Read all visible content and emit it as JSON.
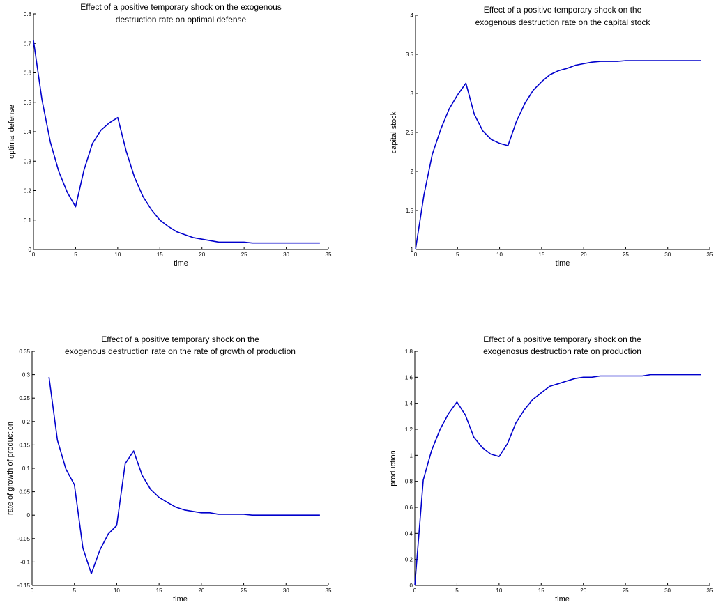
{
  "charts": [
    {
      "type": "line",
      "title_lines": [
        "Effect of a positive temporary shock on the exogenous",
        "destruction rate on optimal defense"
      ],
      "xlabel": "time",
      "ylabel": "optimal defense",
      "xlim": [
        0,
        35
      ],
      "ylim": [
        0,
        0.8
      ],
      "xticks": [
        0,
        5,
        10,
        15,
        20,
        25,
        30,
        35
      ],
      "yticks": [
        0,
        0.1,
        0.2,
        0.3,
        0.4,
        0.5,
        0.6,
        0.7,
        0.8
      ],
      "ytick_labels": [
        "0",
        "0.1",
        "0.2",
        "0.3",
        "0.4",
        "0.5",
        "0.6",
        "0.7",
        "0.8"
      ],
      "color": "#0000cc",
      "x": [
        0,
        1,
        2,
        3,
        4,
        5,
        6,
        7,
        8,
        9,
        10,
        11,
        12,
        13,
        14,
        15,
        16,
        17,
        18,
        19,
        20,
        21,
        22,
        23,
        24,
        25,
        26,
        27,
        28,
        29,
        30,
        31,
        32,
        33,
        34
      ],
      "y": [
        0.71,
        0.51,
        0.365,
        0.265,
        0.195,
        0.145,
        0.27,
        0.36,
        0.405,
        0.43,
        0.448,
        0.335,
        0.245,
        0.18,
        0.135,
        0.1,
        0.078,
        0.06,
        0.05,
        0.04,
        0.035,
        0.03,
        0.025,
        0.025,
        0.025,
        0.025,
        0.022,
        0.022,
        0.022,
        0.022,
        0.022,
        0.022,
        0.022,
        0.022,
        0.022
      ]
    },
    {
      "type": "line",
      "title_lines": [
        "Effect of a positive temporary shock on the",
        "exogenous destruction rate on the capital stock"
      ],
      "xlabel": "time",
      "ylabel": "capital stock",
      "xlim": [
        0,
        35
      ],
      "ylim": [
        1,
        4
      ],
      "xticks": [
        0,
        5,
        10,
        15,
        20,
        25,
        30,
        35
      ],
      "yticks": [
        1,
        1.5,
        2,
        2.5,
        3,
        3.5,
        4
      ],
      "ytick_labels": [
        "1",
        "1.5",
        "2",
        "2.5",
        "3",
        "3.5",
        "4"
      ],
      "color": "#0000cc",
      "x": [
        0,
        1,
        2,
        3,
        4,
        5,
        6,
        7,
        8,
        9,
        10,
        11,
        12,
        13,
        14,
        15,
        16,
        17,
        18,
        19,
        20,
        21,
        22,
        23,
        24,
        25,
        26,
        27,
        28,
        29,
        30,
        31,
        32,
        33,
        34
      ],
      "y": [
        1.0,
        1.7,
        2.22,
        2.54,
        2.8,
        2.98,
        3.13,
        2.73,
        2.52,
        2.41,
        2.36,
        2.33,
        2.64,
        2.87,
        3.04,
        3.15,
        3.24,
        3.29,
        3.32,
        3.36,
        3.38,
        3.4,
        3.41,
        3.41,
        3.41,
        3.42,
        3.42,
        3.42,
        3.42,
        3.42,
        3.42,
        3.42,
        3.42,
        3.42,
        3.42
      ]
    },
    {
      "type": "line",
      "title_lines": [
        "Effect of a positive  temporary shock on the",
        "exogenous destruction rate on the rate of growth of production"
      ],
      "xlabel": "time",
      "ylabel": "rate of growth of production",
      "xlim": [
        0,
        35
      ],
      "ylim": [
        -0.15,
        0.35
      ],
      "xticks": [
        0,
        5,
        10,
        15,
        20,
        25,
        30,
        35
      ],
      "yticks": [
        -0.15,
        -0.1,
        -0.05,
        0,
        0.05,
        0.1,
        0.15,
        0.2,
        0.25,
        0.3,
        0.35
      ],
      "ytick_labels": [
        "-0.15",
        "-0.1",
        "-0.05",
        "0",
        "0.05",
        "0.1",
        "0.15",
        "0.2",
        "0.25",
        "0.3",
        "0.35"
      ],
      "color": "#0000cc",
      "x": [
        2,
        3,
        4,
        5,
        6,
        7,
        8,
        9,
        10,
        11,
        12,
        13,
        14,
        15,
        16,
        17,
        18,
        19,
        20,
        21,
        22,
        23,
        24,
        25,
        26,
        27,
        28,
        29,
        30,
        31,
        32,
        33,
        34
      ],
      "y": [
        0.295,
        0.16,
        0.098,
        0.065,
        -0.07,
        -0.125,
        -0.075,
        -0.04,
        -0.022,
        0.11,
        0.137,
        0.085,
        0.055,
        0.038,
        0.027,
        0.017,
        0.011,
        0.008,
        0.005,
        0.005,
        0.002,
        0.002,
        0.002,
        0.002,
        0.0,
        0.0,
        0.0,
        0.0,
        0.0,
        0.0,
        0.0,
        0.0,
        0.0
      ]
    },
    {
      "type": "line",
      "title_lines": [
        "Effect of a positive  temporary shock on the",
        "exogenosus destruction rate on production"
      ],
      "xlabel": "time",
      "ylabel": "production",
      "xlim": [
        0,
        35
      ],
      "ylim": [
        0,
        1.8
      ],
      "xticks": [
        0,
        5,
        10,
        15,
        20,
        25,
        30,
        35
      ],
      "yticks": [
        0,
        0.2,
        0.4,
        0.6,
        0.8,
        1,
        1.2,
        1.4,
        1.6,
        1.8
      ],
      "ytick_labels": [
        "0",
        "0.2",
        "0.4",
        "0.6",
        "0.8",
        "1",
        "1.2",
        "1.4",
        "1.6",
        "1.8"
      ],
      "color": "#0000cc",
      "x": [
        0,
        1,
        2,
        3,
        4,
        5,
        6,
        7,
        8,
        9,
        10,
        11,
        12,
        13,
        14,
        15,
        16,
        17,
        18,
        19,
        20,
        21,
        22,
        23,
        24,
        25,
        26,
        27,
        28,
        29,
        30,
        31,
        32,
        33,
        34
      ],
      "y": [
        0.0,
        0.81,
        1.04,
        1.2,
        1.32,
        1.41,
        1.31,
        1.14,
        1.06,
        1.01,
        0.99,
        1.09,
        1.25,
        1.35,
        1.43,
        1.48,
        1.53,
        1.55,
        1.57,
        1.59,
        1.6,
        1.6,
        1.61,
        1.61,
        1.61,
        1.61,
        1.61,
        1.61,
        1.62,
        1.62,
        1.62,
        1.62,
        1.62,
        1.62,
        1.62
      ]
    }
  ]
}
